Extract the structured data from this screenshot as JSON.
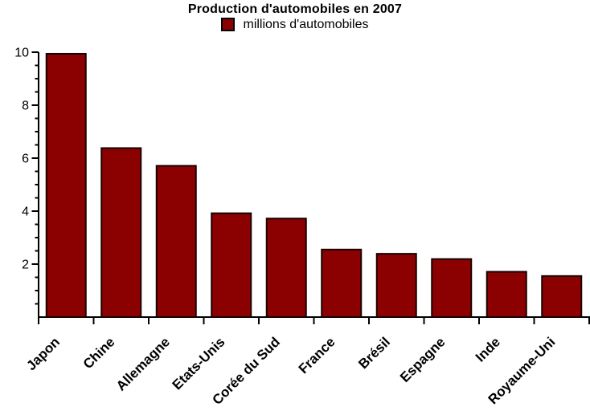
{
  "chart_data": {
    "type": "bar",
    "title": "Production d'automobiles en 2007",
    "legend": {
      "label": "millions d'automobiles",
      "position": "top-center"
    },
    "categories": [
      "Japon",
      "Chine",
      "Allemagne",
      "Etats-Unis",
      "Corée du Sud",
      "France",
      "Brésil",
      "Espagne",
      "Inde",
      "Royaume-Uni"
    ],
    "values": [
      9.94,
      6.38,
      5.71,
      3.92,
      3.72,
      2.55,
      2.39,
      2.19,
      1.71,
      1.55
    ],
    "xlabel": "",
    "ylabel": "",
    "ylim": [
      0,
      10
    ],
    "yticks_major": [
      2,
      4,
      6,
      8,
      10
    ],
    "ytick_minor_step": 0.5,
    "grid": false,
    "bar_color": "#8B0000",
    "bar_border_color": "#1a0000",
    "axis_color": "#000000",
    "text_color": "#000000",
    "background": "#FFFFFF"
  }
}
